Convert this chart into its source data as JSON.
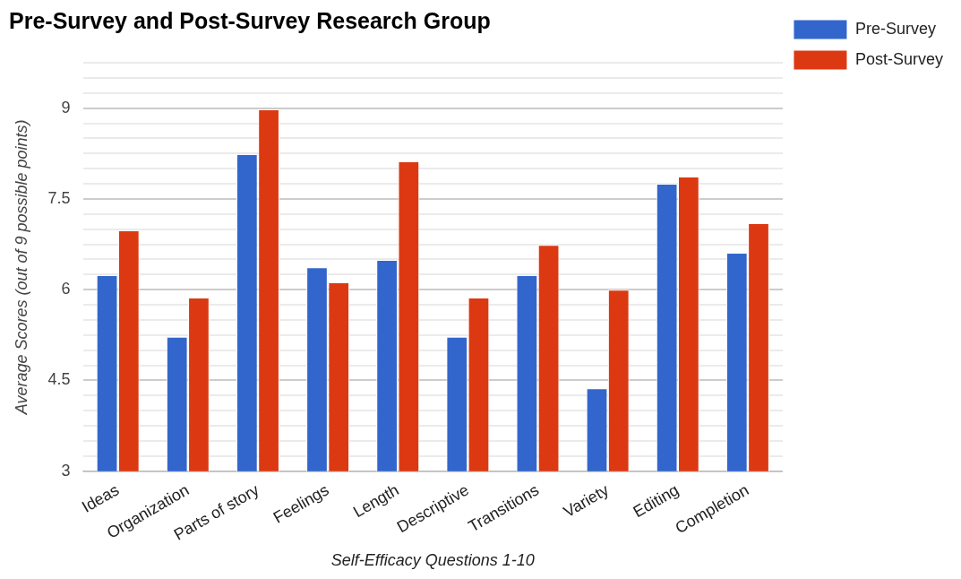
{
  "chart_data": {
    "type": "bar",
    "title": "Pre-Survey and Post-Survey Research Group",
    "xlabel": "Self-Efficacy Questions 1-10",
    "ylabel": "Average Scores (out of 9 possible points)",
    "categories": [
      "Ideas",
      "Organization",
      "Parts of story",
      "Feelings",
      "Length",
      "Descriptive",
      "Transitions",
      "Variety",
      "Editing",
      "Completion"
    ],
    "series": [
      {
        "name": "Pre-Survey",
        "color": "#3366cc",
        "values": [
          6.24,
          5.22,
          8.24,
          6.37,
          6.49,
          5.22,
          6.24,
          4.37,
          7.75,
          6.61
        ]
      },
      {
        "name": "Post-Survey",
        "color": "#dc3912",
        "values": [
          6.98,
          5.87,
          8.98,
          6.12,
          8.12,
          5.87,
          6.74,
          6.0,
          7.87,
          7.1
        ]
      }
    ],
    "ylim": [
      3,
      9.75
    ],
    "yticks": [
      3,
      {
        "value": 3.25,
        "label": null
      },
      {
        "value": 3.5,
        "label": null
      },
      {
        "value": 3.75,
        "label": null
      },
      {
        "value": 4,
        "label": null
      },
      {
        "value": 4.25,
        "label": null
      },
      4.5,
      {
        "value": 4.75,
        "label": null
      },
      {
        "value": 5,
        "label": null
      },
      {
        "value": 5.25,
        "label": null
      },
      {
        "value": 5.5,
        "label": null
      },
      {
        "value": 5.75,
        "label": null
      },
      6,
      {
        "value": 6.25,
        "label": null
      },
      {
        "value": 6.5,
        "label": null
      },
      {
        "value": 6.75,
        "label": null
      },
      {
        "value": 7,
        "label": null
      },
      {
        "value": 7.25,
        "label": null
      },
      7.5,
      {
        "value": 7.75,
        "label": null
      },
      {
        "value": 8,
        "label": null
      },
      {
        "value": 8.25,
        "label": null
      },
      {
        "value": 8.5,
        "label": null
      },
      {
        "value": 8.75,
        "label": null
      },
      9,
      {
        "value": 9.25,
        "label": null
      },
      {
        "value": 9.5,
        "label": null
      },
      {
        "value": 9.75,
        "label": null
      }
    ],
    "grid": true,
    "legend": "top right"
  }
}
